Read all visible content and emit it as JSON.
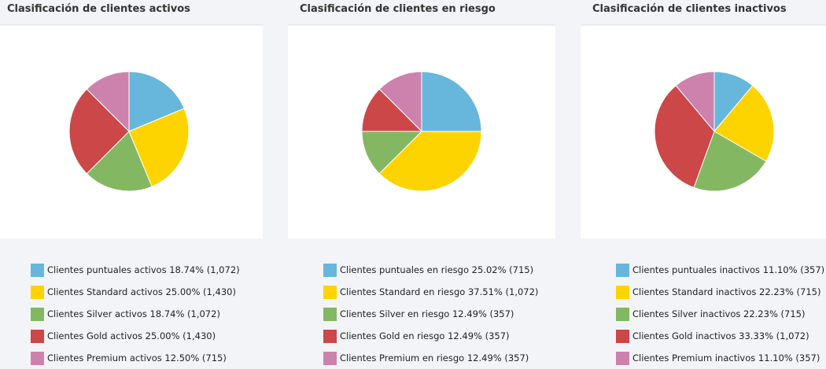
{
  "colors": [
    "#67b7dc",
    "#fdd400",
    "#84b761",
    "#cc4748",
    "#cd82ad"
  ],
  "panels": [
    {
      "title": "Clasificación de clientes activos",
      "legend": [
        "Clientes puntuales activos 18.74% (1,072)",
        "Clientes Standard activos 25.00% (1,430)",
        "Clientes Silver activos 18.74% (1,072)",
        "Clientes Gold activos 25.00% (1,430)",
        "Clientes Premium activos 12.50% (715)"
      ]
    },
    {
      "title": "Clasificación de clientes en riesgo",
      "legend": [
        "Clientes puntuales en riesgo 25.02% (715)",
        "Clientes Standard en riesgo 37.51% (1,072)",
        "Clientes Silver en riesgo 12.49% (357)",
        "Clientes Gold en riesgo 12.49% (357)",
        "Clientes Premium en riesgo 12.49% (357)"
      ]
    },
    {
      "title": "Clasificación de clientes inactivos",
      "legend": [
        "Clientes puntuales inactivos 11.10% (357)",
        "Clientes Standard inactivos 22.23% (715)",
        "Clientes Silver inactivos 22.23% (715)",
        "Clientes Gold inactivos 33.33% (1,072)",
        "Clientes Premium inactivos 11.10% (357)"
      ]
    }
  ],
  "chart_data": [
    {
      "type": "pie",
      "title": "Clasificación de clientes activos",
      "categories": [
        "Clientes puntuales activos",
        "Clientes Standard activos",
        "Clientes Silver activos",
        "Clientes Gold activos",
        "Clientes Premium activos"
      ],
      "values": [
        1072,
        1430,
        1072,
        1430,
        715
      ],
      "percentages": [
        18.74,
        25.0,
        18.74,
        25.0,
        12.5
      ],
      "legend": "bottom"
    },
    {
      "type": "pie",
      "title": "Clasificación de clientes en riesgo",
      "categories": [
        "Clientes puntuales en riesgo",
        "Clientes Standard en riesgo",
        "Clientes Silver en riesgo",
        "Clientes Gold en riesgo",
        "Clientes Premium en riesgo"
      ],
      "values": [
        715,
        1072,
        357,
        357,
        357
      ],
      "percentages": [
        25.02,
        37.51,
        12.49,
        12.49,
        12.49
      ],
      "legend": "bottom"
    },
    {
      "type": "pie",
      "title": "Clasificación de clientes inactivos",
      "categories": [
        "Clientes puntuales inactivos",
        "Clientes Standard inactivos",
        "Clientes Silver inactivos",
        "Clientes Gold inactivos",
        "Clientes Premium inactivos"
      ],
      "values": [
        357,
        715,
        715,
        1072,
        357
      ],
      "percentages": [
        11.1,
        22.23,
        22.23,
        33.33,
        11.1
      ],
      "legend": "bottom"
    }
  ]
}
